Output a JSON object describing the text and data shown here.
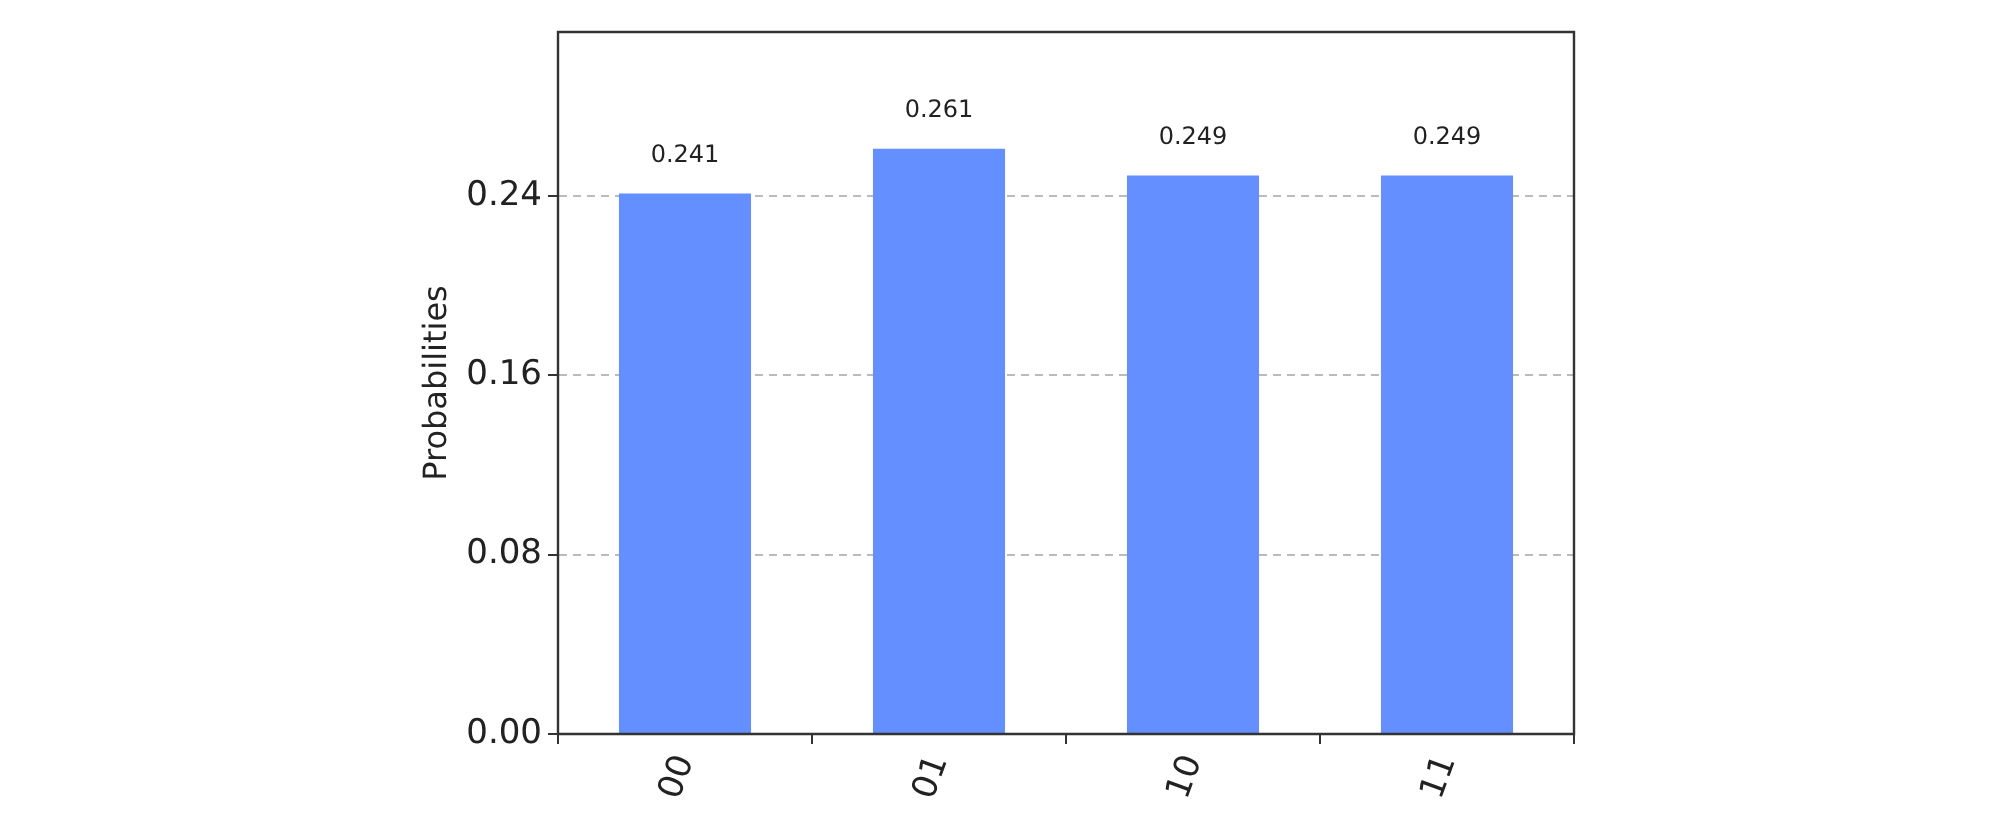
{
  "chart_data": {
    "type": "bar",
    "categories": [
      "00",
      "01",
      "10",
      "11"
    ],
    "values": [
      0.241,
      0.261,
      0.249,
      0.249
    ],
    "color": "#648fff",
    "ylabel": "Probabilities",
    "ylim": [
      0,
      0.313
    ],
    "yticks": [
      {
        "value": 0,
        "label": "0.00"
      },
      0.08,
      0.16,
      0.24
    ],
    "grid": "y",
    "data_labels": true
  }
}
